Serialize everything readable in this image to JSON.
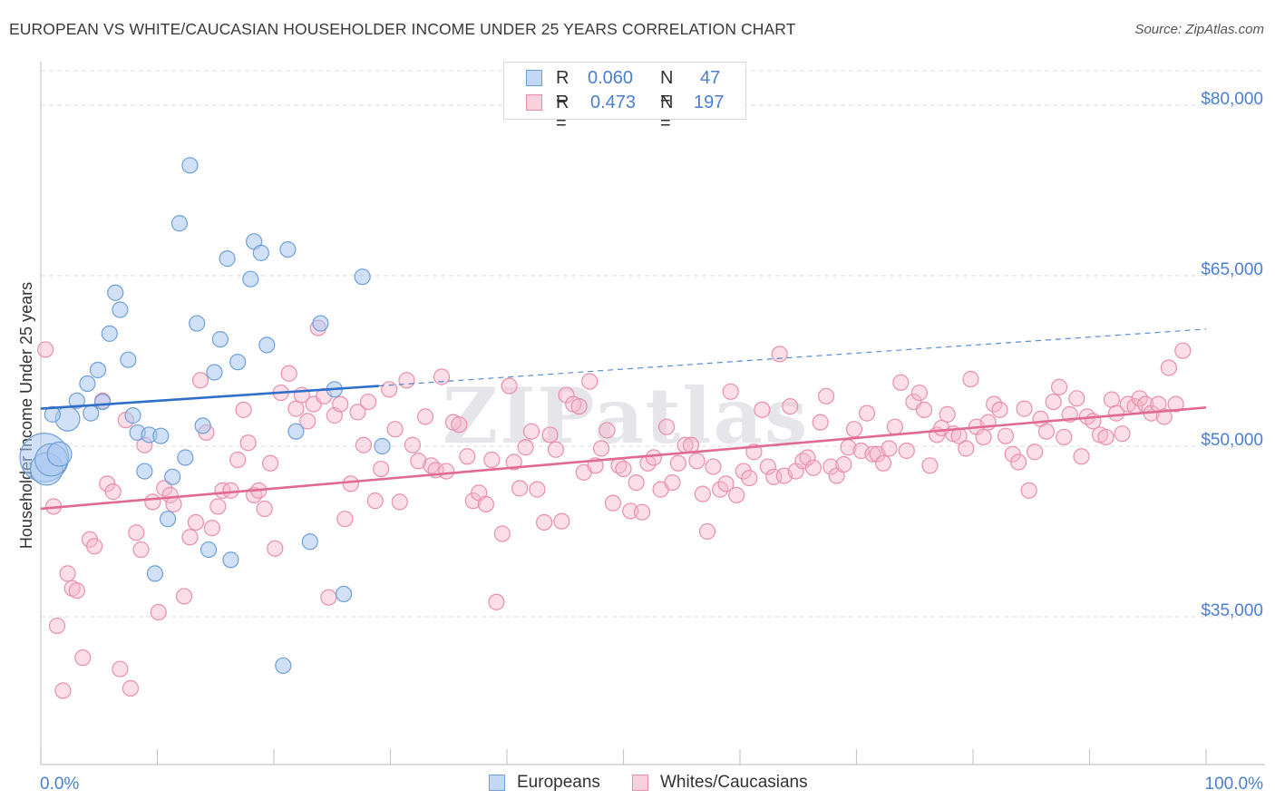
{
  "header": {
    "title": "EUROPEAN VS WHITE/CAUCASIAN HOUSEHOLDER INCOME UNDER 25 YEARS CORRELATION CHART",
    "source": "Source: ZipAtlas.com"
  },
  "legend": {
    "rows": [
      {
        "r_label": "R =",
        "r_value": "0.060",
        "n_label": "N =",
        "n_value": "47"
      },
      {
        "r_label": "R =",
        "r_value": "0.473",
        "n_label": "N =",
        "n_value": "197"
      }
    ]
  },
  "bottom_legend": {
    "europeans": "Europeans",
    "whites": "Whites/Caucasians"
  },
  "colors": {
    "european_fill": "#a9c8f0",
    "european_stroke": "#6f9fd8",
    "european_line": "#2f6fc8",
    "white_fill": "#f7b6ca",
    "white_stroke": "#e98fac",
    "white_line": "#e06a93",
    "axis_text": "#4a7fd0",
    "grid": "#dcdcdc"
  },
  "chart_data": {
    "type": "scatter",
    "title": "EUROPEAN VS WHITE/CAUCASIAN HOUSEHOLDER INCOME UNDER 25 YEARS CORRELATION CHART",
    "ylabel": "Householder Income Under 25 years",
    "xlabel": "",
    "x_tick_labels": [
      "0.0%",
      "100.0%"
    ],
    "y_ticks": [
      35000,
      50000,
      65000,
      80000
    ],
    "y_tick_labels": [
      "$35,000",
      "$50,000",
      "$65,000",
      "$80,000"
    ],
    "xlim": [
      0,
      100
    ],
    "ylim": [
      22000,
      83500
    ],
    "watermark": "ZIPatlas",
    "series": [
      {
        "name": "Europeans",
        "R": 0.06,
        "N": 47,
        "trend": {
          "x0": 0,
          "y0": 53300,
          "x1": 29,
          "y1": 55300,
          "x_dash_end": 100,
          "y_dash_end": 60300
        },
        "points": [
          [
            0.3,
            49000,
            3
          ],
          [
            0.5,
            48000,
            2
          ],
          [
            0.9,
            48800,
            2
          ],
          [
            1.6,
            49300,
            1.5
          ],
          [
            2.3,
            52400,
            1.5
          ],
          [
            1.0,
            52800,
            1
          ],
          [
            3.1,
            54000,
            1
          ],
          [
            4.0,
            55500,
            1
          ],
          [
            4.3,
            52900,
            1
          ],
          [
            4.9,
            56700,
            1
          ],
          [
            5.3,
            53900,
            1
          ],
          [
            5.9,
            59900,
            1
          ],
          [
            6.4,
            63500,
            1
          ],
          [
            6.8,
            62000,
            1
          ],
          [
            7.5,
            57600,
            1
          ],
          [
            7.9,
            52700,
            1
          ],
          [
            8.3,
            51200,
            1
          ],
          [
            8.9,
            47800,
            1
          ],
          [
            9.3,
            51000,
            1
          ],
          [
            9.8,
            38800,
            1
          ],
          [
            10.3,
            50900,
            1
          ],
          [
            10.9,
            43600,
            1
          ],
          [
            11.3,
            47300,
            1
          ],
          [
            11.9,
            69600,
            1
          ],
          [
            12.4,
            49000,
            1
          ],
          [
            12.8,
            74700,
            1
          ],
          [
            13.4,
            60800,
            1
          ],
          [
            13.9,
            51800,
            1
          ],
          [
            14.4,
            40900,
            1
          ],
          [
            14.9,
            56500,
            1
          ],
          [
            15.4,
            59400,
            1
          ],
          [
            16.0,
            66500,
            1
          ],
          [
            16.3,
            40000,
            1
          ],
          [
            16.9,
            57400,
            1
          ],
          [
            18.0,
            64700,
            1
          ],
          [
            18.3,
            68000,
            1
          ],
          [
            18.9,
            67000,
            1
          ],
          [
            19.4,
            58900,
            1
          ],
          [
            20.8,
            30700,
            1
          ],
          [
            21.2,
            67300,
            1
          ],
          [
            21.9,
            51300,
            1
          ],
          [
            23.1,
            41600,
            1
          ],
          [
            24.0,
            60800,
            1
          ],
          [
            25.2,
            55000,
            1
          ],
          [
            26.0,
            37000,
            1
          ],
          [
            27.6,
            64900,
            1
          ],
          [
            29.3,
            50000,
            1
          ]
        ]
      },
      {
        "name": "Whites/Caucasians",
        "R": 0.473,
        "N": 197,
        "trend": {
          "x0": 0,
          "y0": 44500,
          "x1": 100,
          "y1": 53400
        },
        "points": [
          [
            0.4,
            58500
          ],
          [
            1.1,
            44700
          ],
          [
            1.4,
            34200
          ],
          [
            1.9,
            28500
          ],
          [
            2.3,
            38800
          ],
          [
            2.7,
            37500
          ],
          [
            3.1,
            37300
          ],
          [
            3.6,
            31400
          ],
          [
            4.2,
            41800
          ],
          [
            4.6,
            41200
          ],
          [
            5.3,
            54000
          ],
          [
            5.7,
            46700
          ],
          [
            6.2,
            46000
          ],
          [
            6.8,
            30400
          ],
          [
            7.3,
            52300
          ],
          [
            7.7,
            28700
          ],
          [
            8.2,
            42400
          ],
          [
            8.6,
            40900
          ],
          [
            8.9,
            50100
          ],
          [
            9.6,
            45100
          ],
          [
            10.1,
            35400
          ],
          [
            10.6,
            46300
          ],
          [
            11.1,
            45700
          ],
          [
            11.4,
            44900
          ],
          [
            12.3,
            36800
          ],
          [
            12.8,
            42000
          ],
          [
            13.3,
            43300
          ],
          [
            13.7,
            55800
          ],
          [
            14.2,
            51200
          ],
          [
            14.7,
            42800
          ],
          [
            15.2,
            44700
          ],
          [
            15.6,
            46100
          ],
          [
            16.3,
            46100
          ],
          [
            16.9,
            48800
          ],
          [
            17.4,
            53200
          ],
          [
            17.8,
            50300
          ],
          [
            18.3,
            45700
          ],
          [
            18.7,
            46100
          ],
          [
            19.2,
            44500
          ],
          [
            19.7,
            48500
          ],
          [
            20.1,
            41000
          ],
          [
            20.6,
            54700
          ],
          [
            21.3,
            56400
          ],
          [
            21.9,
            53300
          ],
          [
            22.4,
            54500
          ],
          [
            22.9,
            52200
          ],
          [
            23.4,
            53700
          ],
          [
            23.8,
            60400
          ],
          [
            24.3,
            54400
          ],
          [
            24.7,
            36700
          ],
          [
            25.2,
            52700
          ],
          [
            25.7,
            53700
          ],
          [
            26.1,
            43600
          ],
          [
            26.6,
            46700
          ],
          [
            27.2,
            53000
          ],
          [
            27.7,
            50100
          ],
          [
            28.1,
            53900
          ],
          [
            28.7,
            45200
          ],
          [
            29.2,
            48000
          ],
          [
            29.9,
            55000
          ],
          [
            30.4,
            51500
          ],
          [
            30.8,
            45100
          ],
          [
            31.4,
            55800
          ],
          [
            31.9,
            50100
          ],
          [
            32.4,
            48700
          ],
          [
            33.0,
            52600
          ],
          [
            33.5,
            48300
          ],
          [
            33.9,
            47900
          ],
          [
            34.4,
            56100
          ],
          [
            34.8,
            47800
          ],
          [
            35.4,
            52100
          ],
          [
            35.9,
            51900
          ],
          [
            36.6,
            49100
          ],
          [
            37.1,
            45200
          ],
          [
            37.6,
            45900
          ],
          [
            38.2,
            44900
          ],
          [
            38.7,
            48800
          ],
          [
            39.1,
            36300
          ],
          [
            39.6,
            42300
          ],
          [
            40.2,
            55300
          ],
          [
            40.6,
            48600
          ],
          [
            41.1,
            46300
          ],
          [
            41.6,
            49900
          ],
          [
            42.1,
            51300
          ],
          [
            42.6,
            46200
          ],
          [
            43.2,
            43300
          ],
          [
            43.7,
            51000
          ],
          [
            44.2,
            49700
          ],
          [
            44.7,
            43400
          ],
          [
            45.1,
            54500
          ],
          [
            45.7,
            53700
          ],
          [
            46.2,
            53500
          ],
          [
            46.6,
            47700
          ],
          [
            47.1,
            55700
          ],
          [
            47.6,
            48300
          ],
          [
            48.1,
            49800
          ],
          [
            48.6,
            51400
          ],
          [
            49.1,
            45000
          ],
          [
            49.6,
            48300
          ],
          [
            50.0,
            48000
          ],
          [
            50.6,
            44300
          ],
          [
            51.1,
            46800
          ],
          [
            51.6,
            44200
          ],
          [
            52.1,
            48500
          ],
          [
            52.6,
            49000
          ],
          [
            53.2,
            46200
          ],
          [
            53.7,
            51700
          ],
          [
            54.2,
            46800
          ],
          [
            54.7,
            48500
          ],
          [
            55.3,
            50100
          ],
          [
            55.8,
            50100
          ],
          [
            56.3,
            48700
          ],
          [
            56.8,
            45800
          ],
          [
            57.2,
            42500
          ],
          [
            57.7,
            48200
          ],
          [
            58.3,
            46200
          ],
          [
            58.8,
            46700
          ],
          [
            59.2,
            54800
          ],
          [
            59.7,
            45700
          ],
          [
            60.3,
            47800
          ],
          [
            60.8,
            47200
          ],
          [
            61.2,
            49500
          ],
          [
            61.9,
            53200
          ],
          [
            62.4,
            48200
          ],
          [
            62.9,
            47300
          ],
          [
            63.4,
            58100
          ],
          [
            63.8,
            47400
          ],
          [
            64.3,
            53500
          ],
          [
            64.8,
            47800
          ],
          [
            65.4,
            48700
          ],
          [
            65.8,
            49000
          ],
          [
            66.3,
            48100
          ],
          [
            66.9,
            52100
          ],
          [
            67.4,
            54400
          ],
          [
            67.8,
            48200
          ],
          [
            68.3,
            47400
          ],
          [
            68.9,
            48400
          ],
          [
            69.3,
            49900
          ],
          [
            69.8,
            51500
          ],
          [
            70.4,
            49600
          ],
          [
            70.9,
            52900
          ],
          [
            71.4,
            49300
          ],
          [
            71.8,
            49300
          ],
          [
            72.3,
            48500
          ],
          [
            72.8,
            49800
          ],
          [
            73.3,
            51700
          ],
          [
            73.8,
            55600
          ],
          [
            74.3,
            49600
          ],
          [
            74.9,
            53900
          ],
          [
            75.4,
            54700
          ],
          [
            75.8,
            53200
          ],
          [
            76.3,
            48300
          ],
          [
            76.9,
            51000
          ],
          [
            77.3,
            51600
          ],
          [
            77.8,
            52800
          ],
          [
            78.3,
            51100
          ],
          [
            78.8,
            50900
          ],
          [
            79.4,
            49800
          ],
          [
            79.8,
            55900
          ],
          [
            80.3,
            51700
          ],
          [
            80.9,
            50800
          ],
          [
            81.3,
            52100
          ],
          [
            81.8,
            53700
          ],
          [
            82.3,
            53200
          ],
          [
            82.8,
            50900
          ],
          [
            83.4,
            49300
          ],
          [
            83.9,
            48600
          ],
          [
            84.4,
            53300
          ],
          [
            84.8,
            46100
          ],
          [
            85.3,
            49500
          ],
          [
            85.8,
            52400
          ],
          [
            86.3,
            51300
          ],
          [
            86.9,
            53900
          ],
          [
            87.4,
            55200
          ],
          [
            87.8,
            50800
          ],
          [
            88.3,
            52800
          ],
          [
            88.9,
            54200
          ],
          [
            89.3,
            49100
          ],
          [
            89.8,
            52600
          ],
          [
            90.3,
            52200
          ],
          [
            90.9,
            51000
          ],
          [
            91.4,
            50800
          ],
          [
            91.9,
            54100
          ],
          [
            92.3,
            52900
          ],
          [
            92.8,
            51100
          ],
          [
            93.3,
            53700
          ],
          [
            93.9,
            53500
          ],
          [
            94.3,
            54200
          ],
          [
            94.8,
            53700
          ],
          [
            95.3,
            52900
          ],
          [
            95.9,
            53700
          ],
          [
            96.4,
            52600
          ],
          [
            96.8,
            56900
          ],
          [
            97.4,
            53700
          ],
          [
            98.0,
            58400
          ]
        ]
      }
    ]
  }
}
